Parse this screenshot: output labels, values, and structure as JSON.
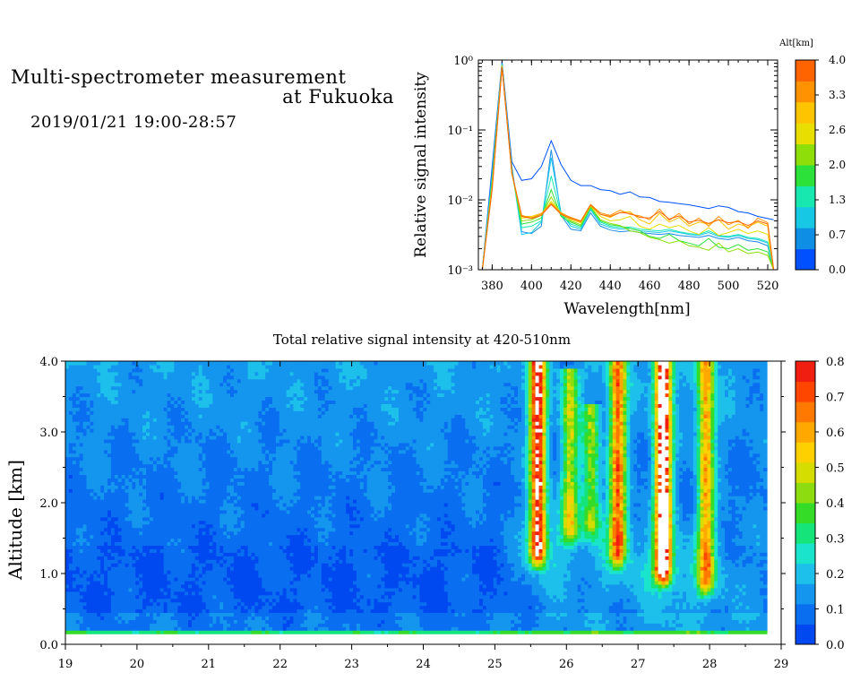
{
  "header": {
    "title_line1": "Multi-spectrometer measurement",
    "title_line2": "at Fukuoka",
    "date_range": "2019/01/21 19:00-28:57"
  },
  "chart_data": [
    {
      "type": "line",
      "title": "",
      "xlabel": "Wavelength[nm]",
      "ylabel": "Relative signal intensity",
      "xlim": [
        373,
        525
      ],
      "ylim": [
        0.001,
        1
      ],
      "yscale": "log",
      "xticks": [
        380,
        400,
        420,
        440,
        460,
        480,
        500,
        520
      ],
      "yticks": [
        "10⁻³",
        "10⁻²",
        "10⁻¹",
        "10⁰"
      ],
      "ytick_values": [
        0.001,
        0.01,
        0.1,
        1
      ],
      "grid": false,
      "colorbar": {
        "title": "Alt[km]",
        "ticks": [
          "0.0",
          "0.7",
          "1.3",
          "2.0",
          "2.6",
          "3.3",
          "4.0"
        ],
        "colors": [
          "#0050ff",
          "#0f8ee6",
          "#16c8e4",
          "#16e8b0",
          "#2ce23a",
          "#8ede0a",
          "#e8de00",
          "#ffc400",
          "#ff9200",
          "#ff6400"
        ]
      },
      "x": [
        375,
        380,
        385,
        390,
        395,
        400,
        405,
        410,
        415,
        420,
        425,
        430,
        435,
        440,
        445,
        450,
        455,
        460,
        465,
        470,
        475,
        480,
        485,
        490,
        495,
        500,
        505,
        510,
        515,
        520,
        523
      ],
      "series": [
        {
          "color": "#0050ff",
          "values": [
            0.0009,
            0.03,
            0.95,
            0.035,
            0.019,
            0.02,
            0.03,
            0.07,
            0.032,
            0.019,
            0.016,
            0.016,
            0.014,
            0.0135,
            0.012,
            0.013,
            0.011,
            0.0108,
            0.0095,
            0.0092,
            0.0088,
            0.0085,
            0.008,
            0.0075,
            0.0082,
            0.0078,
            0.0068,
            0.0065,
            0.0058,
            0.0054,
            0.0052
          ]
        },
        {
          "color": "#1a8ae8",
          "values": [
            0.0009,
            0.025,
            0.9,
            0.03,
            0.0035,
            0.0033,
            0.0042,
            0.052,
            0.006,
            0.0038,
            0.0036,
            0.0065,
            0.0042,
            0.0037,
            0.0035,
            0.0036,
            0.0034,
            0.0033,
            0.0032,
            0.0033,
            0.0031,
            0.003,
            0.0029,
            0.0031,
            0.0028,
            0.0027,
            0.0029,
            0.0026,
            0.0025,
            0.0022,
            0.0009
          ]
        },
        {
          "color": "#18c8e8",
          "values": [
            0.0009,
            0.022,
            0.88,
            0.028,
            0.0032,
            0.0034,
            0.0048,
            0.04,
            0.0065,
            0.0042,
            0.0038,
            0.0072,
            0.0045,
            0.004,
            0.0038,
            0.0039,
            0.0036,
            0.0035,
            0.0034,
            0.0036,
            0.0034,
            0.0032,
            0.0031,
            0.0034,
            0.003,
            0.0029,
            0.0031,
            0.0028,
            0.0027,
            0.0024,
            0.0009
          ]
        },
        {
          "color": "#18e8b4",
          "values": [
            0.0009,
            0.02,
            0.86,
            0.026,
            0.004,
            0.0042,
            0.005,
            0.022,
            0.006,
            0.0045,
            0.004,
            0.0075,
            0.0048,
            0.0042,
            0.004,
            0.0041,
            0.0038,
            0.0037,
            0.0036,
            0.0038,
            0.0035,
            0.0033,
            0.0032,
            0.0036,
            0.0031,
            0.003,
            0.0032,
            0.0029,
            0.0028,
            0.0025,
            0.0009
          ]
        },
        {
          "color": "#2ce23a",
          "values": [
            0.0009,
            0.018,
            0.85,
            0.025,
            0.0045,
            0.0048,
            0.0055,
            0.014,
            0.0058,
            0.0048,
            0.0042,
            0.0078,
            0.005,
            0.0044,
            0.0042,
            0.0039,
            0.0036,
            0.003,
            0.0028,
            0.0032,
            0.0026,
            0.0024,
            0.0022,
            0.0028,
            0.0021,
            0.002,
            0.0023,
            0.0019,
            0.002,
            0.0018,
            0.0009
          ]
        },
        {
          "color": "#8ede0a",
          "values": [
            0.0009,
            0.017,
            0.84,
            0.024,
            0.005,
            0.0052,
            0.006,
            0.011,
            0.0062,
            0.005,
            0.0044,
            0.008,
            0.0052,
            0.0046,
            0.0043,
            0.0036,
            0.0034,
            0.0029,
            0.0027,
            0.0024,
            0.0026,
            0.0022,
            0.0021,
            0.0019,
            0.0024,
            0.0018,
            0.002,
            0.0017,
            0.0018,
            0.0016,
            0.0009
          ]
        },
        {
          "color": "#e8de00",
          "values": [
            0.0009,
            0.016,
            0.83,
            0.024,
            0.0055,
            0.0056,
            0.0062,
            0.0095,
            0.0065,
            0.0052,
            0.0047,
            0.0082,
            0.0058,
            0.005,
            0.0052,
            0.0058,
            0.0042,
            0.0038,
            0.0045,
            0.004,
            0.0043,
            0.0036,
            0.0032,
            0.004,
            0.0031,
            0.0034,
            0.0038,
            0.0033,
            0.0036,
            0.0032,
            0.0009
          ]
        },
        {
          "color": "#ffc400",
          "values": [
            0.0009,
            0.015,
            0.82,
            0.024,
            0.0058,
            0.0058,
            0.0064,
            0.009,
            0.0066,
            0.0055,
            0.0048,
            0.0085,
            0.0062,
            0.0056,
            0.0066,
            0.0068,
            0.0052,
            0.0045,
            0.0064,
            0.0048,
            0.0056,
            0.0042,
            0.0048,
            0.0045,
            0.0052,
            0.0038,
            0.0045,
            0.0041,
            0.0048,
            0.0042,
            0.0009
          ]
        },
        {
          "color": "#ff9200",
          "values": [
            0.0009,
            0.015,
            0.8,
            0.024,
            0.006,
            0.0055,
            0.0063,
            0.0088,
            0.0064,
            0.0056,
            0.005,
            0.0086,
            0.0065,
            0.006,
            0.0071,
            0.0062,
            0.0059,
            0.0052,
            0.0074,
            0.0051,
            0.0064,
            0.0045,
            0.0055,
            0.0042,
            0.0058,
            0.0044,
            0.0051,
            0.0039,
            0.0055,
            0.0047,
            0.0009
          ]
        },
        {
          "color": "#ff6400",
          "values": [
            0.0009,
            0.014,
            0.78,
            0.024,
            0.0058,
            0.0054,
            0.006,
            0.0086,
            0.0062,
            0.0054,
            0.0049,
            0.0084,
            0.0062,
            0.0058,
            0.0066,
            0.0064,
            0.0056,
            0.0055,
            0.0068,
            0.0053,
            0.0059,
            0.0048,
            0.0051,
            0.0046,
            0.0052,
            0.0047,
            0.0049,
            0.0043,
            0.005,
            0.0045,
            0.0009
          ]
        }
      ]
    },
    {
      "type": "heatmap",
      "title": "Total relative signal intensity at 420-510nm",
      "xlabel": "",
      "ylabel": "Altitude [km]",
      "xlim": [
        19,
        29
      ],
      "ylim": [
        0,
        4
      ],
      "xticks": [
        "19",
        "20",
        "21",
        "22",
        "23",
        "24",
        "25",
        "26",
        "27",
        "28",
        "29"
      ],
      "yticks": [
        "0.0",
        "1.0",
        "2.0",
        "3.0",
        "4.0"
      ],
      "data_end_x": 28.8,
      "colorbar": {
        "ticks": [
          "0.0",
          "0.1",
          "0.2",
          "0.3",
          "0.4",
          "0.5",
          "0.6",
          "0.7",
          "0.8"
        ],
        "range": [
          0,
          0.8
        ],
        "colors": [
          "#0048f0",
          "#0a6ef0",
          "#1496ee",
          "#1cc0ea",
          "#1ae4cc",
          "#14e47a",
          "#34dc28",
          "#8cdc10",
          "#d4dc00",
          "#ffd000",
          "#ffa800",
          "#ff7800",
          "#ff4600",
          "#f01e10"
        ]
      },
      "plumes": [
        {
          "x": 25.6,
          "bottom": 1.3,
          "top": 4.0,
          "peak": 0.78
        },
        {
          "x": 26.05,
          "bottom": 1.6,
          "top": 3.9,
          "peak": 0.38
        },
        {
          "x": 26.35,
          "bottom": 1.7,
          "top": 3.4,
          "peak": 0.34
        },
        {
          "x": 26.72,
          "bottom": 1.3,
          "top": 4.0,
          "peak": 0.62
        },
        {
          "x": 27.35,
          "bottom": 1.05,
          "top": 4.0,
          "peak": 0.95
        },
        {
          "x": 27.95,
          "bottom": 0.9,
          "top": 4.0,
          "peak": 0.55
        }
      ]
    }
  ]
}
